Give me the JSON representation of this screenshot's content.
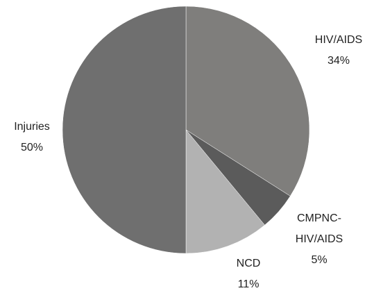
{
  "chart_data": {
    "type": "pie",
    "categories": [
      "HIV/AIDS",
      "CMPNC-HIV/AIDS",
      "NCD",
      "Injuries"
    ],
    "values": [
      34,
      5,
      11,
      50
    ],
    "value_labels": [
      "34%",
      "5%",
      "11%",
      "50%"
    ],
    "colors": [
      "#7f7e7c",
      "#5b5b5b",
      "#b2b2b2",
      "#6f6f6f"
    ]
  }
}
